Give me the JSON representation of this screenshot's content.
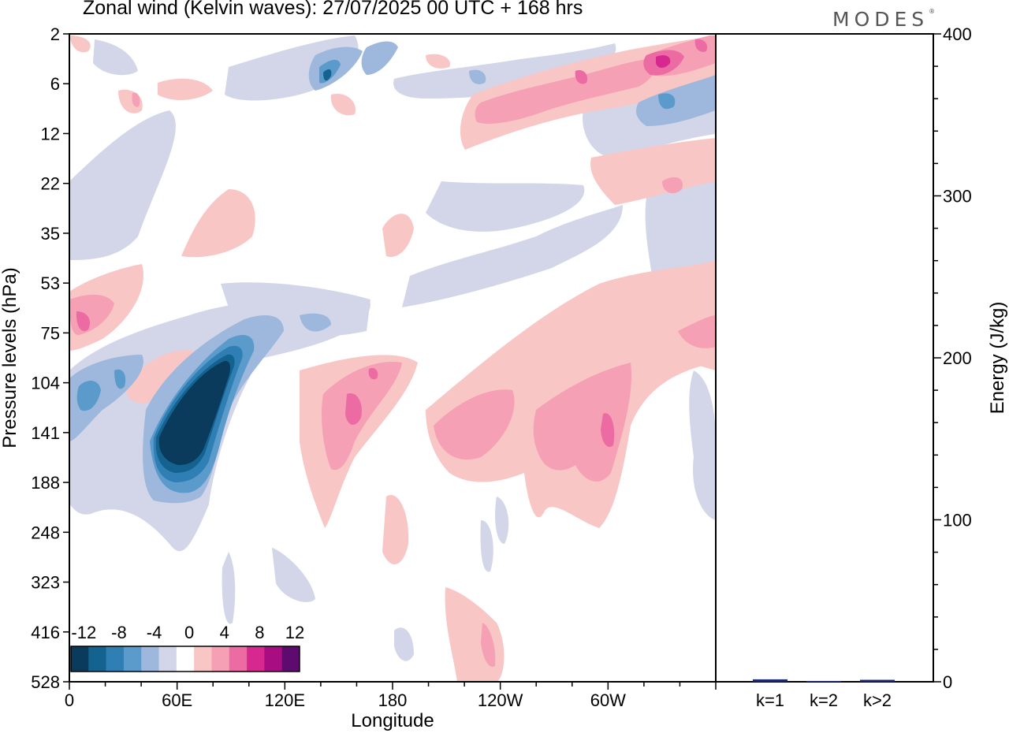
{
  "title": "Zonal wind (Kelvin waves):  27/07/2025  00 UTC  + 168 hrs",
  "brand": {
    "name": "MODES",
    "mark": "®"
  },
  "chart_data": [
    {
      "type": "heatmap",
      "title": "Zonal wind (Kelvin waves):  27/07/2025  00 UTC  + 168 hrs",
      "xlabel": "Longitude",
      "ylabel": "Pressure levels (hPa)",
      "x_ticks": [
        "0",
        "60E",
        "120E",
        "180",
        "120W",
        "60W"
      ],
      "y_ticks": [
        "2",
        "6",
        "12",
        "22",
        "35",
        "53",
        "75",
        "104",
        "141",
        "188",
        "248",
        "323",
        "416",
        "528"
      ],
      "colorbar": {
        "labels": [
          "-12",
          "-8",
          "-4",
          "0",
          "4",
          "8",
          "12"
        ],
        "levels": [
          -14,
          -12,
          -10,
          -8,
          -6,
          -4,
          -2,
          2,
          4,
          6,
          8,
          10,
          12,
          14
        ],
        "colors": [
          "#0b3b5c",
          "#13628f",
          "#2f7fb5",
          "#5b9bcb",
          "#9db8dc",
          "#d2d6e8",
          "#ffffff",
          "#f9c6c6",
          "#f5a0b4",
          "#ec6ba2",
          "#d7288f",
          "#a80d82",
          "#5e0a6f"
        ]
      },
      "features": [
        {
          "name": "strong easterly core",
          "lon": [
            55,
            88
          ],
          "pressure": [
            104,
            188
          ],
          "value": -14
        },
        {
          "name": "easterly band 100hPa",
          "lon": [
            0,
            45
          ],
          "pressure": [
            104,
            160
          ],
          "value": -8
        },
        {
          "name": "westerly 75hPa west",
          "lon": [
            0,
            25
          ],
          "pressure": [
            60,
            90
          ],
          "value": 8
        },
        {
          "name": "westerly 120-160E",
          "lon": [
            140,
            170
          ],
          "pressure": [
            110,
            160
          ],
          "value": 8
        },
        {
          "name": "westerly near 90W",
          "lon": [
            255,
            285
          ],
          "pressure": [
            110,
            170
          ],
          "value": 8
        },
        {
          "name": "stratospheric westerly 2-6hPa",
          "lon": [
            255,
            355
          ],
          "pressure": [
            3,
            6
          ],
          "value": 10
        },
        {
          "name": "stratospheric easterly 2-6hPa",
          "lon": [
            125,
            175
          ],
          "pressure": [
            2,
            6
          ],
          "value": -8
        }
      ]
    },
    {
      "type": "bar",
      "categories": [
        "k=1",
        "k=2",
        "k>2"
      ],
      "values": [
        1.5,
        0.5,
        1.2
      ],
      "ylabel": "Energy (J/kg)",
      "ylim": [
        0,
        400
      ],
      "y_ticks": [
        "0",
        "100",
        "200",
        "300",
        "400"
      ],
      "bar_color": "#1f2a6e"
    }
  ]
}
